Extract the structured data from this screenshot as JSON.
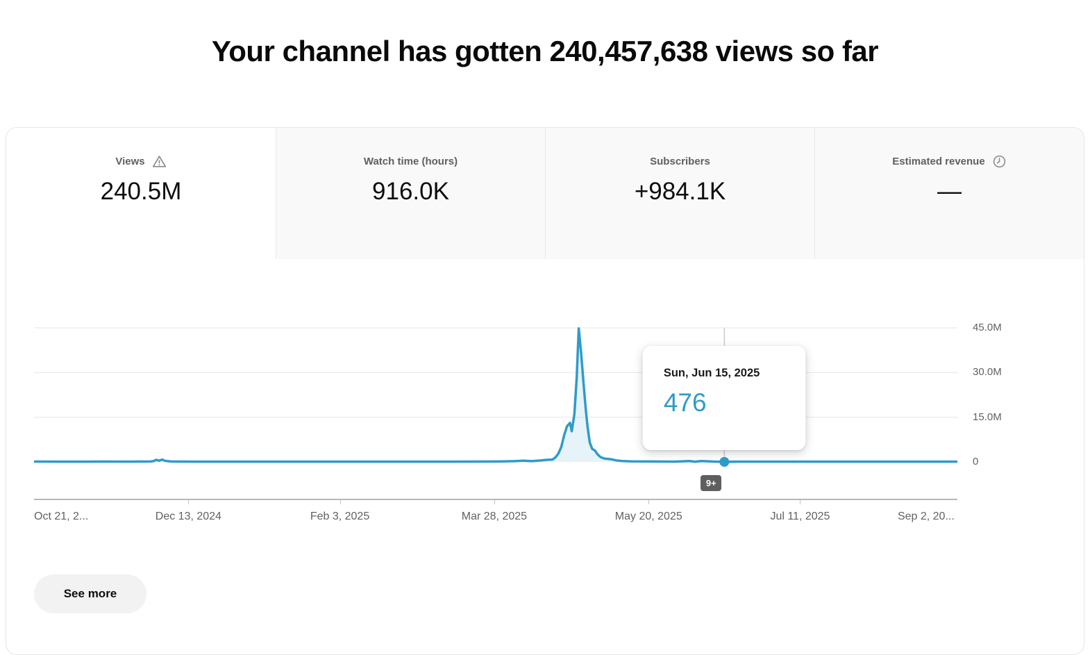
{
  "header": {
    "title": "Your channel has gotten 240,457,638 views so far"
  },
  "tabs": [
    {
      "label": "Views",
      "value": "240.5M",
      "icon": "warning-icon",
      "active": true
    },
    {
      "label": "Watch time (hours)",
      "value": "916.0K",
      "icon": null,
      "active": false
    },
    {
      "label": "Subscribers",
      "value": "+984.1K",
      "icon": null,
      "active": false
    },
    {
      "label": "Estimated revenue",
      "value": "—",
      "icon": "clock-icon",
      "active": false
    }
  ],
  "tooltip": {
    "date": "Sun, Jun 15, 2025",
    "value": "476"
  },
  "hover_badge_label": "9+",
  "see_more_label": "See more",
  "colors": {
    "line": "#2f9bc9",
    "area_fill": "rgba(47,155,201,0.12)",
    "grid": "#e7e7e7",
    "hover_line": "#cccccc",
    "axis_line": "#b8b8b8",
    "badge_bg": "#5f5f5f",
    "tooltip_value": "#2f9bc9"
  },
  "chart_data": {
    "type": "line",
    "title": "Channel views over time",
    "x_start_date": "Oct 21, 2024",
    "x_end_date": "Sep 2, 2025",
    "x_unit": "days since Oct 21, 2024",
    "xlim_days": [
      0,
      317
    ],
    "ylim": [
      0,
      45000000
    ],
    "grid": true,
    "legend": false,
    "y_ticks": [
      {
        "label": "45.0M",
        "value": 45000000
      },
      {
        "label": "30.0M",
        "value": 30000000
      },
      {
        "label": "15.0M",
        "value": 15000000
      },
      {
        "label": "0",
        "value": 0
      }
    ],
    "x_ticks": [
      {
        "label": "Oct 21, 2...",
        "day": 0,
        "align": "left",
        "tick": false
      },
      {
        "label": "Dec 13, 2024",
        "day": 53,
        "align": "center",
        "tick": true
      },
      {
        "label": "Feb 3, 2025",
        "day": 105,
        "align": "center",
        "tick": true
      },
      {
        "label": "Mar 28, 2025",
        "day": 158,
        "align": "center",
        "tick": true
      },
      {
        "label": "May 20, 2025",
        "day": 211,
        "align": "center",
        "tick": true
      },
      {
        "label": "Jul 11, 2025",
        "day": 263,
        "align": "center",
        "tick": true
      },
      {
        "label": "Sep 2, 20...",
        "day": 316,
        "align": "right",
        "tick": false
      }
    ],
    "points": [
      [
        0,
        120000
      ],
      [
        8,
        100000
      ],
      [
        16,
        90000
      ],
      [
        24,
        110000
      ],
      [
        32,
        100000
      ],
      [
        40,
        150000
      ],
      [
        41,
        250000
      ],
      [
        42,
        700000
      ],
      [
        43,
        400000
      ],
      [
        44,
        800000
      ],
      [
        45,
        350000
      ],
      [
        47,
        150000
      ],
      [
        55,
        100000
      ],
      [
        70,
        90000
      ],
      [
        85,
        100000
      ],
      [
        100,
        95000
      ],
      [
        115,
        100000
      ],
      [
        130,
        90000
      ],
      [
        145,
        100000
      ],
      [
        155,
        120000
      ],
      [
        160,
        150000
      ],
      [
        165,
        250000
      ],
      [
        168,
        400000
      ],
      [
        171,
        250000
      ],
      [
        174,
        500000
      ],
      [
        176,
        700000
      ],
      [
        178,
        800000
      ],
      [
        179,
        1500000
      ],
      [
        180,
        2800000
      ],
      [
        181,
        5000000
      ],
      [
        182,
        9000000
      ],
      [
        183,
        12000000
      ],
      [
        184,
        13100000
      ],
      [
        184.6,
        10300000
      ],
      [
        185.5,
        16000000
      ],
      [
        186.3,
        28000000
      ],
      [
        187,
        44800000
      ],
      [
        187.8,
        37000000
      ],
      [
        188.6,
        27000000
      ],
      [
        189.4,
        18000000
      ],
      [
        190,
        12000000
      ],
      [
        190.8,
        6500000
      ],
      [
        191.6,
        4400000
      ],
      [
        192.6,
        3800000
      ],
      [
        193.4,
        2600000
      ],
      [
        194.5,
        1600000
      ],
      [
        196,
        1100000
      ],
      [
        198,
        900000
      ],
      [
        200,
        500000
      ],
      [
        202,
        300000
      ],
      [
        205,
        180000
      ],
      [
        210,
        130000
      ],
      [
        215,
        110000
      ],
      [
        220,
        100000
      ],
      [
        225,
        300000
      ],
      [
        227,
        60000
      ],
      [
        229,
        300000
      ],
      [
        233,
        110000
      ],
      [
        237,
        476
      ],
      [
        241,
        100000
      ],
      [
        250,
        95000
      ],
      [
        265,
        100000
      ],
      [
        280,
        90000
      ],
      [
        295,
        100000
      ],
      [
        310,
        95000
      ],
      [
        317,
        100000
      ]
    ],
    "hover_point": {
      "day": 237,
      "date": "Sun, Jun 15, 2025",
      "views": 476
    }
  }
}
